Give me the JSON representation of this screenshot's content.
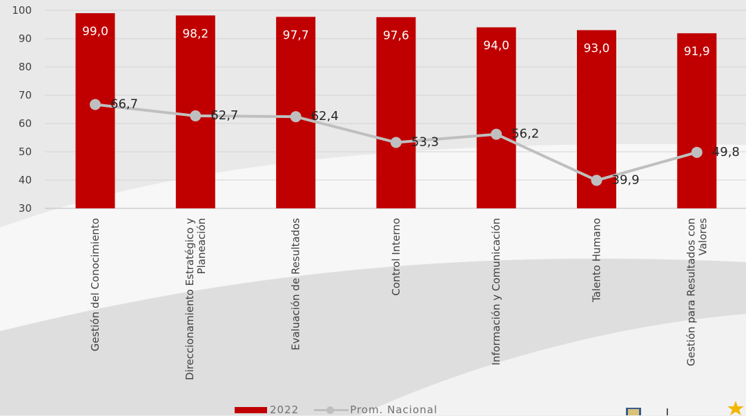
{
  "chart_data": {
    "type": "bar",
    "categories": [
      "Gestión del Conocimiento",
      "Direccionamiento Estratégico y Planeación",
      "Evaluación de Resultados",
      "Control Interno",
      "Información y Comunicación",
      "Talento Humano",
      "Gestión para Resultados con Valores"
    ],
    "series": [
      {
        "name": "2022",
        "type": "bar",
        "color": "#c00000",
        "values": [
          99.0,
          98.2,
          97.7,
          97.6,
          94.0,
          93.0,
          91.9
        ],
        "labels": [
          "99,0",
          "98,2",
          "97,7",
          "97,6",
          "94,0",
          "93,0",
          "91,9"
        ]
      },
      {
        "name": "Prom. Nacional",
        "type": "line",
        "color": "#bfbfbf",
        "values": [
          66.7,
          62.7,
          62.4,
          53.3,
          56.2,
          39.9,
          49.8
        ],
        "labels": [
          "66,7",
          "62,7",
          "62,4",
          "53,3",
          "56,2",
          "39,9",
          "49,8"
        ]
      }
    ],
    "ylim": [
      30,
      100
    ],
    "yticks": [
      30,
      40,
      50,
      60,
      70,
      80,
      90,
      100
    ],
    "grid": true,
    "legend_position": "bottom"
  },
  "legend": {
    "bar_label": "2022",
    "line_label": "Prom. Nacional"
  }
}
